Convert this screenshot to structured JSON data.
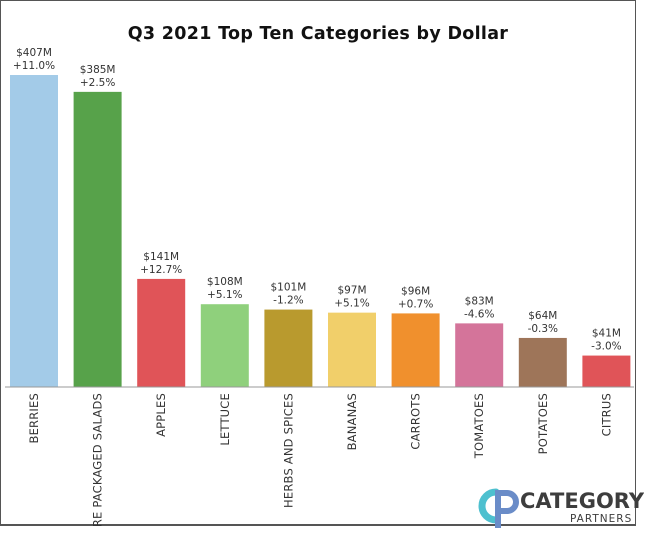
{
  "chart_data": {
    "type": "bar",
    "title": "Q3 2021 Top Ten Categories by Dollar",
    "unit": "$M",
    "categories": [
      "BERRIES",
      "PRE PACKAGED SALADS",
      "APPLES",
      "LETTUCE",
      "HERBS AND SPICES",
      "BANANAS",
      "CARROTS",
      "TOMATOES",
      "POTATOES",
      "CITRUS"
    ],
    "values": [
      407,
      385,
      141,
      108,
      101,
      97,
      96,
      83,
      64,
      41
    ],
    "value_labels": [
      "$407M",
      "$385M",
      "$141M",
      "$108M",
      "$101M",
      "$97M",
      "$96M",
      "$83M",
      "$64M",
      "$41M"
    ],
    "change_labels": [
      "+11.0%",
      "+2.5%",
      "+12.7%",
      "+5.1%",
      "-1.2%",
      "+5.1%",
      "+0.7%",
      "-4.6%",
      "-0.3%",
      "-3.0%"
    ],
    "colors": [
      "#a3cbe8",
      "#57a24a",
      "#e05458",
      "#8fd07c",
      "#b99a2e",
      "#f1cf6a",
      "#f0902d",
      "#d4749a",
      "#9e7559",
      "#e05458"
    ],
    "ylim": [
      0,
      407
    ],
    "grid": false,
    "legend": "none"
  },
  "logo": {
    "brand_main": "CATEGORY",
    "brand_sub": "PARTNERS",
    "mark": "CP",
    "colors": {
      "c": "#4ec0cf",
      "p": "#6a8cc8"
    }
  }
}
